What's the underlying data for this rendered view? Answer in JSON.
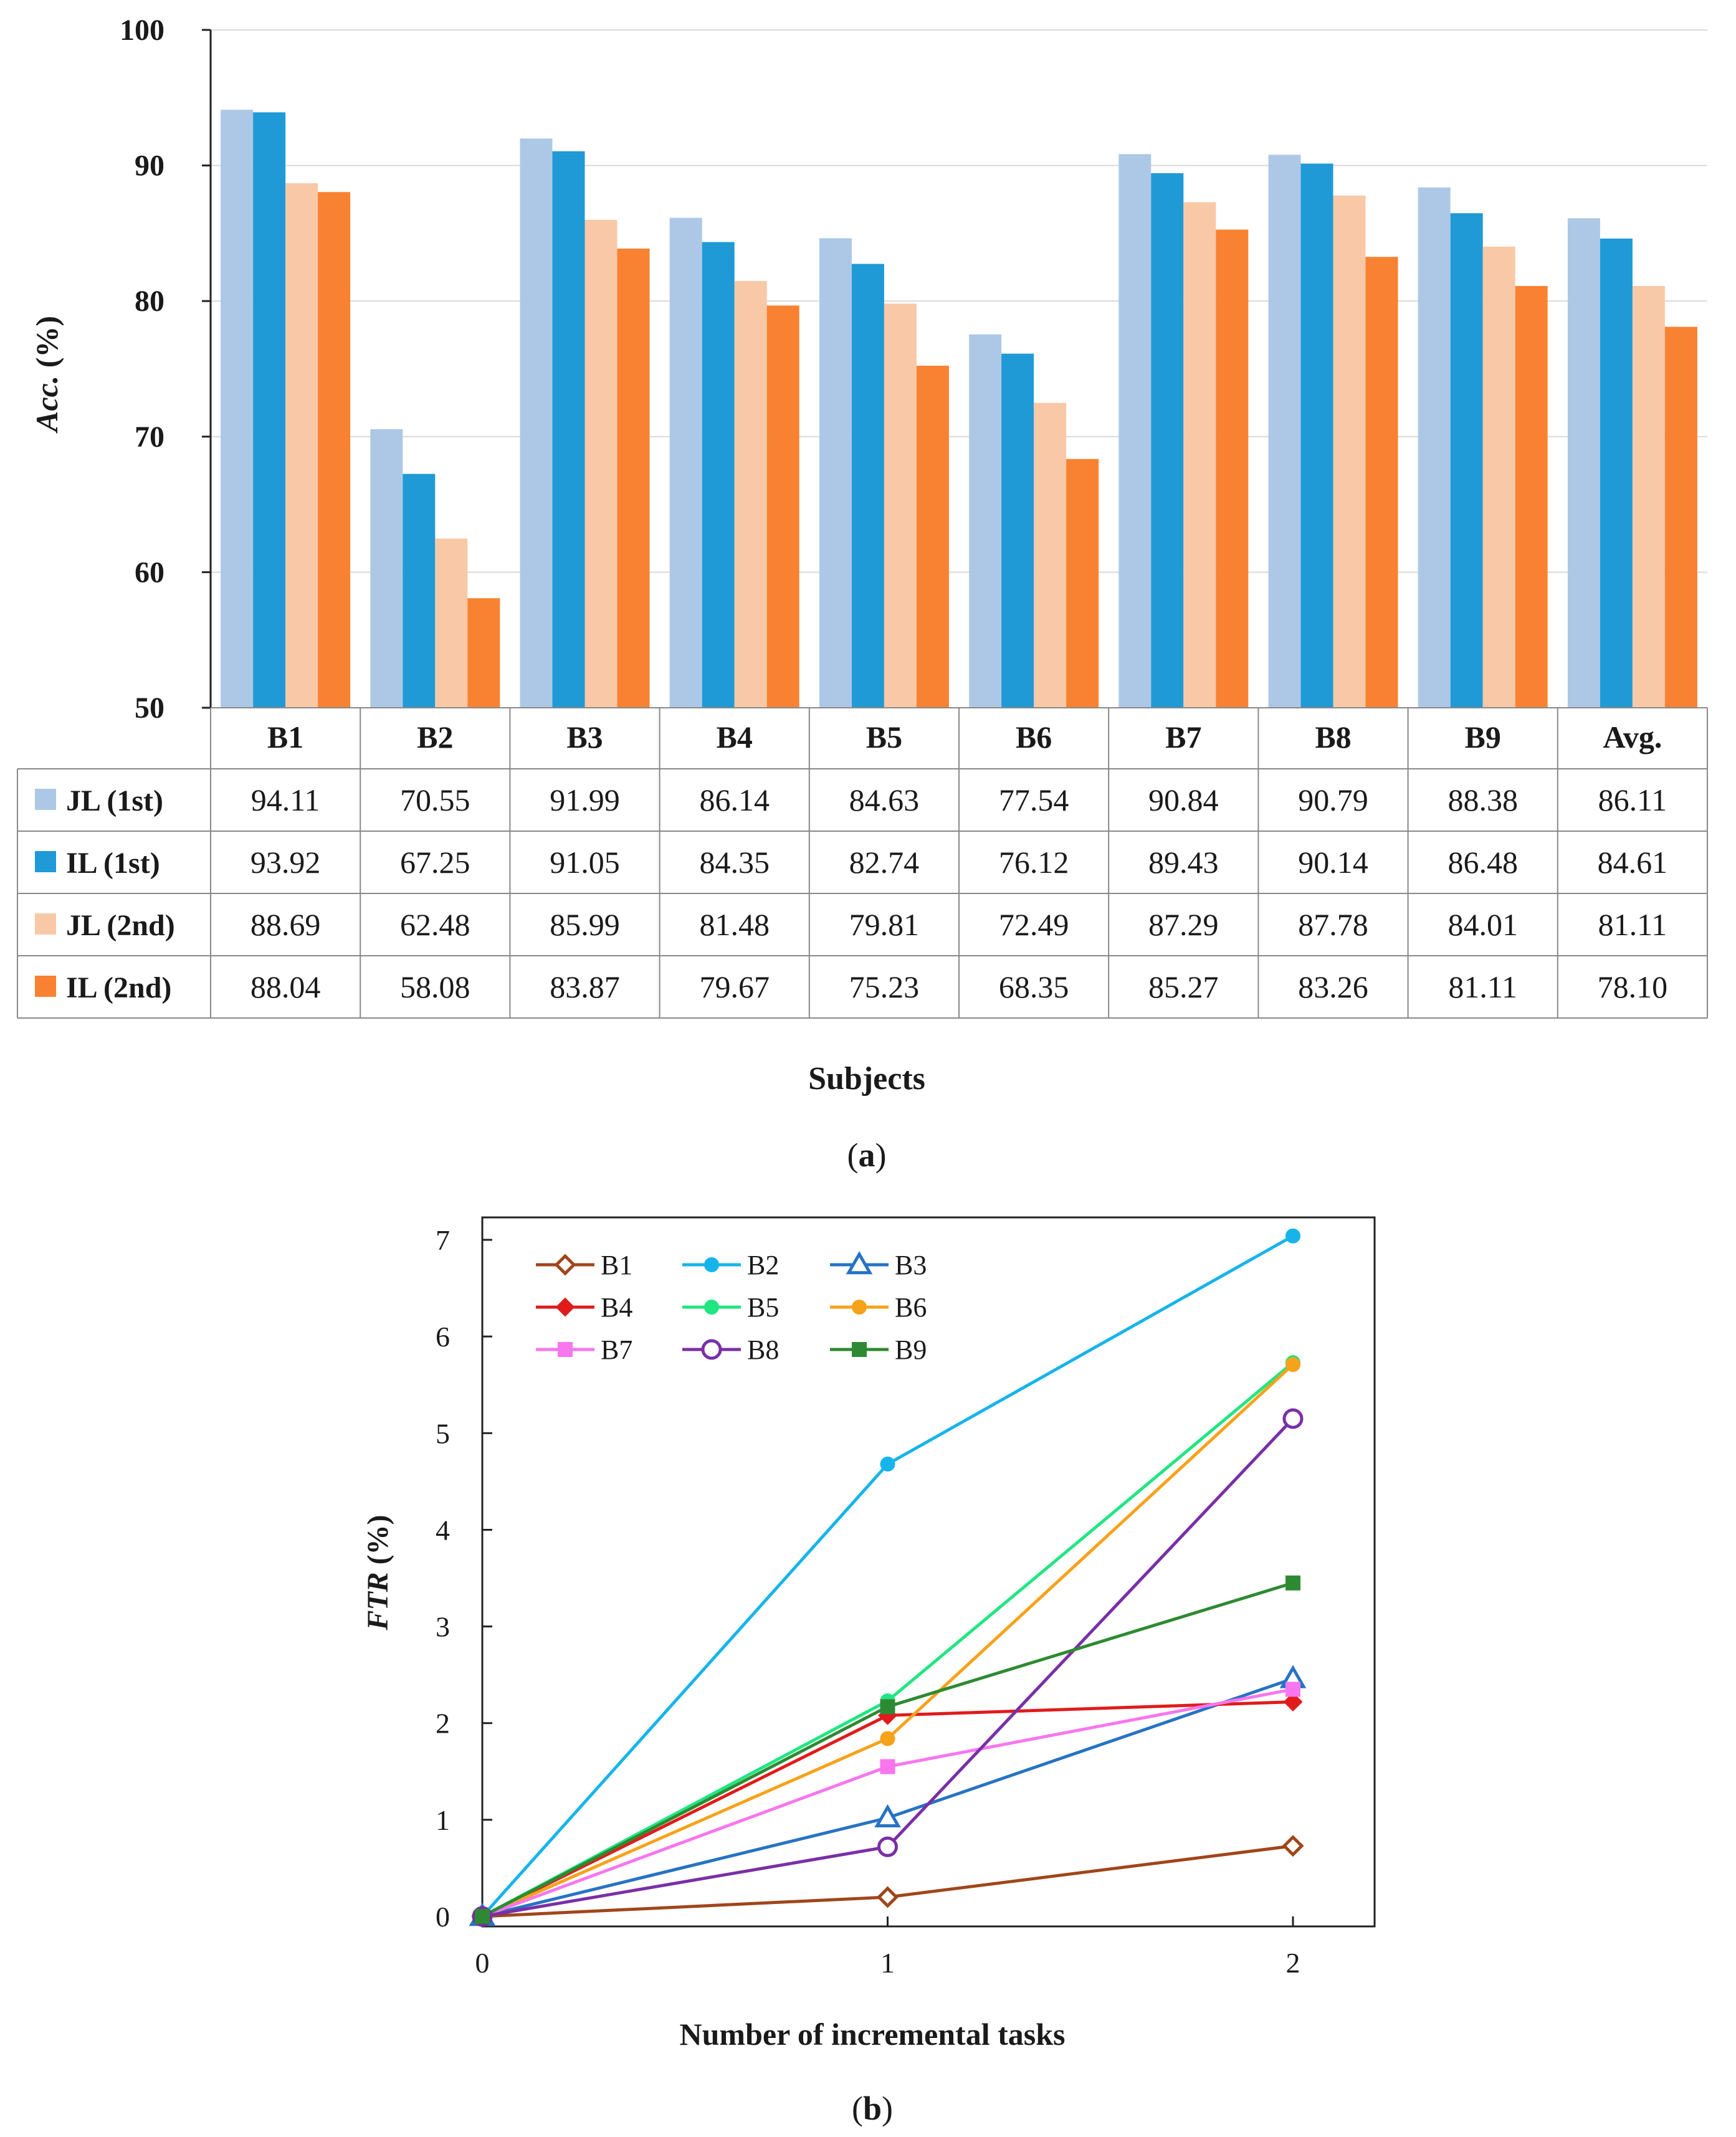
{
  "chart_data": [
    {
      "type": "bar",
      "panel_label": "(a)",
      "panel_label_letter": "a",
      "ylabel_italic": "Acc.",
      "ylabel_unit": " (%)",
      "xlabel": "Subjects",
      "ylim": [
        50,
        100
      ],
      "yticks": [
        "50",
        "60",
        "70",
        "80",
        "90",
        "100"
      ],
      "categories": [
        "B1",
        "B2",
        "B3",
        "B4",
        "B5",
        "B6",
        "B7",
        "B8",
        "B9",
        "Avg."
      ],
      "series": [
        {
          "name": "JL (1st)",
          "color": "#adc8e7",
          "values": [
            94.11,
            70.55,
            91.99,
            86.14,
            84.63,
            77.54,
            90.84,
            90.79,
            88.38,
            86.11
          ]
        },
        {
          "name": "IL (1st)",
          "color": "#1f9ad6",
          "values": [
            93.92,
            67.25,
            91.05,
            84.35,
            82.74,
            76.12,
            89.43,
            90.14,
            86.48,
            84.61
          ]
        },
        {
          "name": "JL (2nd)",
          "color": "#f9c8a6",
          "values": [
            88.69,
            62.48,
            85.99,
            81.48,
            79.81,
            72.49,
            87.29,
            87.78,
            84.01,
            81.11
          ]
        },
        {
          "name": "IL (2nd)",
          "color": "#f88231",
          "values": [
            88.04,
            58.08,
            83.87,
            79.67,
            75.23,
            68.35,
            85.27,
            83.26,
            81.11,
            78.1
          ]
        }
      ],
      "table_cells": [
        [
          "94.11",
          "70.55",
          "91.99",
          "86.14",
          "84.63",
          "77.54",
          "90.84",
          "90.79",
          "88.38",
          "86.11"
        ],
        [
          "93.92",
          "67.25",
          "91.05",
          "84.35",
          "82.74",
          "76.12",
          "89.43",
          "90.14",
          "86.48",
          "84.61"
        ],
        [
          "88.69",
          "62.48",
          "85.99",
          "81.48",
          "79.81",
          "72.49",
          "87.29",
          "87.78",
          "84.01",
          "81.11"
        ],
        [
          "88.04",
          "58.08",
          "83.87",
          "79.67",
          "75.23",
          "68.35",
          "85.27",
          "83.26",
          "81.11",
          "78.10"
        ]
      ]
    },
    {
      "type": "line",
      "panel_label": "(b)",
      "panel_label_letter": "b",
      "ylabel_italic": "FTR",
      "ylabel_unit": " (%)",
      "xlabel": "Number of incremental tasks",
      "x": [
        0,
        1,
        2
      ],
      "xticks": [
        "0",
        "1",
        "2"
      ],
      "ylim": [
        0,
        7.5
      ],
      "yticks": [
        "0",
        "1",
        "2",
        "3",
        "4",
        "5",
        "6",
        "7"
      ],
      "legend_position": "top-left",
      "series": [
        {
          "name": "B1",
          "color": "#a0461a",
          "marker": "diamond-open",
          "values": [
            0,
            0.2,
            0.73
          ]
        },
        {
          "name": "B2",
          "color": "#16b4ea",
          "marker": "circle",
          "values": [
            0,
            4.68,
            7.04
          ]
        },
        {
          "name": "B3",
          "color": "#2673c4",
          "marker": "triangle-open",
          "values": [
            0,
            1.02,
            2.46
          ]
        },
        {
          "name": "B4",
          "color": "#e11b1b",
          "marker": "diamond",
          "values": [
            0,
            2.08,
            2.22
          ]
        },
        {
          "name": "B5",
          "color": "#20e681",
          "marker": "circle",
          "values": [
            0,
            2.23,
            5.73
          ]
        },
        {
          "name": "B6",
          "color": "#f7a21b",
          "marker": "circle",
          "values": [
            0,
            1.84,
            5.71
          ]
        },
        {
          "name": "B7",
          "color": "#f876ee",
          "marker": "square",
          "values": [
            0,
            1.55,
            2.35
          ]
        },
        {
          "name": "B8",
          "color": "#7a2fa6",
          "marker": "circle-open",
          "values": [
            0,
            0.72,
            5.15
          ]
        },
        {
          "name": "B9",
          "color": "#2e8a32",
          "marker": "square",
          "values": [
            0,
            2.17,
            3.45
          ]
        }
      ]
    }
  ]
}
